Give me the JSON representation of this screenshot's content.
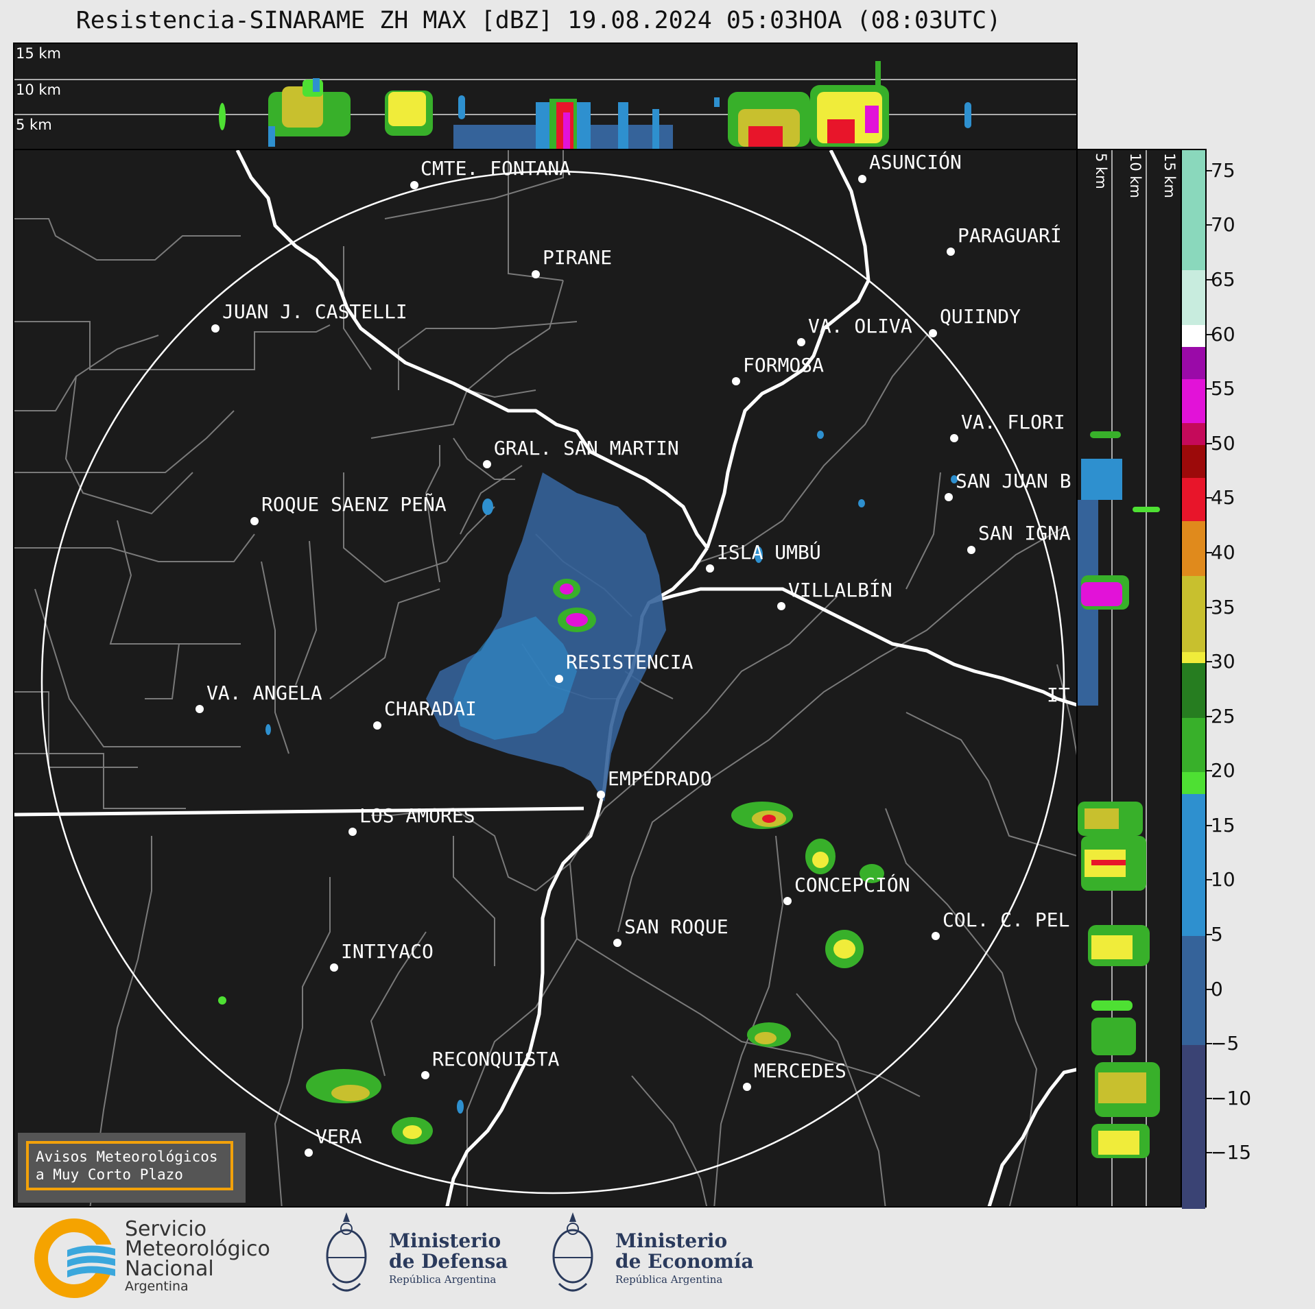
{
  "title": "Resistencia-SINARAME ZH MAX [dBZ] 19.08.2024 05:03HOA (08:03UTC)",
  "top_panel": {
    "height_labels": [
      "15 km",
      "10 km",
      "5 km"
    ]
  },
  "side_panel": {
    "height_labels": [
      "5 km",
      "10 km",
      "15 km"
    ]
  },
  "cities": [
    {
      "name": "CMTE. FONTANA"
    },
    {
      "name": "ASUNCIÓN"
    },
    {
      "name": "PIRANE"
    },
    {
      "name": "PARAGUARÍ"
    },
    {
      "name": "JUAN J. CASTELLI"
    },
    {
      "name": "QUIINDY"
    },
    {
      "name": "VA. OLIVA"
    },
    {
      "name": "FORMOSA"
    },
    {
      "name": "VA. FLORI"
    },
    {
      "name": "GRAL. SAN MARTIN"
    },
    {
      "name": "SAN JUAN B"
    },
    {
      "name": "ROQUE SAENZ PEÑA"
    },
    {
      "name": "SAN IGNA"
    },
    {
      "name": "ISLA UMBÚ"
    },
    {
      "name": "VILLALBÍN"
    },
    {
      "name": "RESISTENCIA"
    },
    {
      "name": "IT"
    },
    {
      "name": "VA. ANGELA"
    },
    {
      "name": "CHARADAI"
    },
    {
      "name": "EMPEDRADO"
    },
    {
      "name": "LOS AMORES"
    },
    {
      "name": "CONCEPCIÓN"
    },
    {
      "name": "SAN ROQUE"
    },
    {
      "name": "COL. C. PEL"
    },
    {
      "name": "INTIYACO"
    },
    {
      "name": "RECONQUISTA"
    },
    {
      "name": "MERCEDES"
    },
    {
      "name": "VERA"
    }
  ],
  "colorbar": {
    "unit": "dBZ",
    "range": [
      -20,
      77
    ],
    "ticks": [
      "75",
      "70",
      "65",
      "60",
      "55",
      "50",
      "45",
      "40",
      "35",
      "30",
      "25",
      "20",
      "15",
      "10",
      "5",
      "0",
      "−5",
      "−10",
      "−15"
    ],
    "tick_values": [
      75,
      70,
      65,
      60,
      55,
      50,
      45,
      40,
      35,
      30,
      25,
      20,
      15,
      10,
      5,
      0,
      -5,
      -10,
      -15
    ],
    "colors": [
      {
        "from": -20,
        "to": -5,
        "color": "#3a4374"
      },
      {
        "from": -5,
        "to": 5,
        "color": "#35639a"
      },
      {
        "from": 5,
        "to": 18,
        "color": "#2e90cf"
      },
      {
        "from": 18,
        "to": 20,
        "color": "#4ee033"
      },
      {
        "from": 20,
        "to": 25,
        "color": "#38b02a"
      },
      {
        "from": 25,
        "to": 30,
        "color": "#267d20"
      },
      {
        "from": 30,
        "to": 31,
        "color": "#f0ec3a"
      },
      {
        "from": 31,
        "to": 38,
        "color": "#c8c02e"
      },
      {
        "from": 38,
        "to": 43,
        "color": "#e08a1c"
      },
      {
        "from": 43,
        "to": 47,
        "color": "#e8152a"
      },
      {
        "from": 47,
        "to": 50,
        "color": "#9c0a0a"
      },
      {
        "from": 50,
        "to": 52,
        "color": "#c50a5a"
      },
      {
        "from": 52,
        "to": 56,
        "color": "#e212d8"
      },
      {
        "from": 56,
        "to": 59,
        "color": "#9a0aa8"
      },
      {
        "from": 59,
        "to": 61,
        "color": "#ffffff"
      },
      {
        "from": 61,
        "to": 66,
        "color": "#c8ecde"
      },
      {
        "from": 66,
        "to": 77,
        "color": "#8ad8bc"
      }
    ]
  },
  "avisos": {
    "line1": "Avisos Meteorológicos",
    "line2": "a Muy Corto Plazo"
  },
  "logos": {
    "smn_line1": "Servicio",
    "smn_line2": "Meteorológico",
    "smn_line3": "Nacional",
    "smn_line4": "Argentina",
    "defensa_line1": "Ministerio",
    "defensa_line2": "de Defensa",
    "defensa_line3": "República Argentina",
    "economia_line1": "Ministerio",
    "economia_line2": "de Economía",
    "economia_line3": "República Argentina"
  },
  "colors": {
    "background": "#1b1b1b",
    "rivers": "#ffffff",
    "borders": "#7a7a7a",
    "accent": "#f2a10a"
  }
}
